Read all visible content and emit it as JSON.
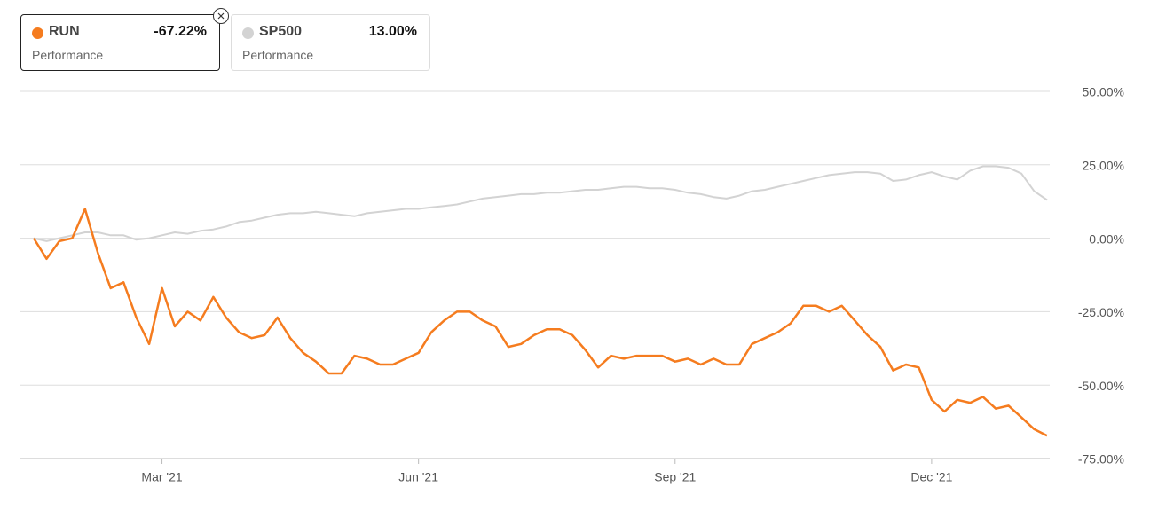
{
  "chart_data": {
    "type": "line",
    "categories": [
      null,
      null,
      null,
      null,
      null,
      null,
      null,
      null,
      null,
      null,
      "Mar '21",
      null,
      null,
      null,
      null,
      null,
      null,
      null,
      null,
      null,
      null,
      null,
      null,
      null,
      null,
      null,
      null,
      null,
      null,
      null,
      "Jun '21",
      null,
      null,
      null,
      null,
      null,
      null,
      null,
      null,
      null,
      null,
      null,
      null,
      null,
      null,
      null,
      null,
      null,
      null,
      null,
      "Sep '21",
      null,
      null,
      null,
      null,
      null,
      null,
      null,
      null,
      null,
      null,
      null,
      null,
      null,
      null,
      null,
      null,
      null,
      null,
      null,
      "Dec '21",
      null,
      null,
      null,
      null,
      null,
      null,
      null,
      null,
      null
    ],
    "series": [
      {
        "name": "RUN",
        "color": "#f57c1f",
        "legend_value": "-67.22%",
        "legend_caption": "Performance",
        "values": [
          0,
          -7,
          -1,
          0,
          10,
          -5,
          -17,
          -15,
          -27,
          -36,
          -17,
          -30,
          -25,
          -28,
          -20,
          -27,
          -32,
          -34,
          -33,
          -27,
          -34,
          -39,
          -42,
          -46,
          -46,
          -40,
          -41,
          -43,
          -43,
          -41,
          -39,
          -32,
          -28,
          -25,
          -25,
          -28,
          -30,
          -37,
          -36,
          -33,
          -31,
          -31,
          -33,
          -38,
          -44,
          -40,
          -41,
          -40,
          -40,
          -40,
          -42,
          -41,
          -43,
          -41,
          -43,
          -43,
          -36,
          -34,
          -32,
          -29,
          -23,
          -23,
          -25,
          -23,
          -28,
          -33,
          -37,
          -45,
          -43,
          -44,
          -55,
          -59,
          -55,
          -56,
          -54,
          -58,
          -57,
          -61,
          -65,
          -67.22
        ]
      },
      {
        "name": "SP500",
        "color": "#d3d3d3",
        "legend_value": "13.00%",
        "legend_caption": "Performance",
        "values": [
          0,
          -1,
          0,
          1,
          2,
          2,
          1,
          1,
          -0.5,
          0,
          1,
          2,
          1.5,
          2.5,
          3,
          4,
          5.5,
          6,
          7,
          8,
          8.5,
          8.5,
          9,
          8.5,
          8,
          7.5,
          8.5,
          9,
          9.5,
          10,
          10,
          10.5,
          11,
          11.5,
          12.5,
          13.5,
          14,
          14.5,
          15,
          15,
          15.5,
          15.5,
          16,
          16.5,
          16.5,
          17,
          17.5,
          17.5,
          17,
          17,
          16.5,
          15.5,
          15,
          14,
          13.5,
          14.5,
          16,
          16.5,
          17.5,
          18.5,
          19.5,
          20.5,
          21.5,
          22,
          22.5,
          22.5,
          22,
          19.5,
          20,
          21.5,
          22.5,
          21,
          20,
          23,
          24.5,
          24.5,
          24,
          22,
          16,
          13
        ]
      }
    ],
    "ylim": [
      -75,
      50
    ],
    "yticks": [
      {
        "value": -75,
        "label": "-75.00%"
      },
      {
        "value": -50,
        "label": "-50.00%"
      },
      {
        "value": -25,
        "label": "-25.00%"
      },
      {
        "value": 0,
        "label": "0.00%"
      },
      {
        "value": 25,
        "label": "25.00%"
      },
      {
        "value": 50,
        "label": "50.00%"
      }
    ],
    "grid": true
  }
}
